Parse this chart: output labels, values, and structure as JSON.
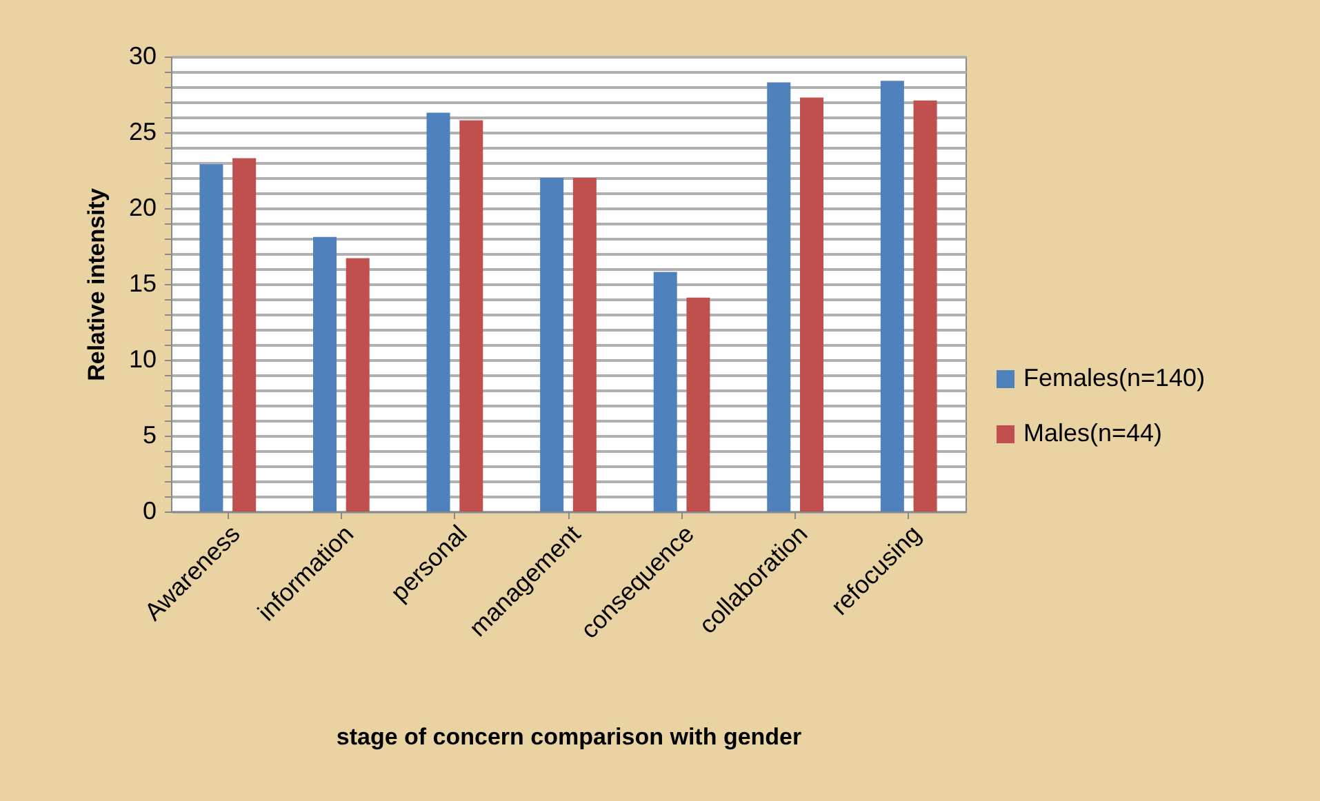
{
  "chart_data": {
    "type": "bar",
    "xlabel": "stage of concern comparison with gender",
    "ylabel": "Relative intensity",
    "categories": [
      "Awareness",
      "information",
      "personal",
      "management",
      "consequence",
      "collaboration",
      "refocusing"
    ],
    "series": [
      {
        "name": "Females(n=140)",
        "color": "#4f81bd",
        "values": [
          22.9,
          18.1,
          26.3,
          22.0,
          15.8,
          28.3,
          28.4
        ]
      },
      {
        "name": "Males(n=44)",
        "color": "#c0504d",
        "values": [
          23.3,
          16.7,
          25.8,
          22.0,
          14.1,
          27.3,
          27.1
        ]
      }
    ],
    "ylim": [
      0,
      30
    ],
    "yticks": [
      0,
      {
        "value": 1,
        "label": null
      },
      {
        "value": 2,
        "label": null
      },
      {
        "value": 3,
        "label": null
      },
      {
        "value": 4,
        "label": null
      },
      5,
      {
        "value": 6,
        "label": null
      },
      {
        "value": 7,
        "label": null
      },
      {
        "value": 8,
        "label": null
      },
      {
        "value": 9,
        "label": null
      },
      10,
      {
        "value": 11,
        "label": null
      },
      {
        "value": 12,
        "label": null
      },
      {
        "value": 13,
        "label": null
      },
      {
        "value": 14,
        "label": null
      },
      15,
      {
        "value": 16,
        "label": null
      },
      {
        "value": 17,
        "label": null
      },
      {
        "value": 18,
        "label": null
      },
      {
        "value": 19,
        "label": null
      },
      20,
      {
        "value": 21,
        "label": null
      },
      {
        "value": 22,
        "label": null
      },
      {
        "value": 23,
        "label": null
      },
      {
        "value": 24,
        "label": null
      },
      25,
      {
        "value": 26,
        "label": null
      },
      {
        "value": 27,
        "label": null
      },
      {
        "value": 28,
        "label": null
      },
      {
        "value": 29,
        "label": null
      },
      30
    ],
    "grid": "y",
    "legend": "right"
  }
}
